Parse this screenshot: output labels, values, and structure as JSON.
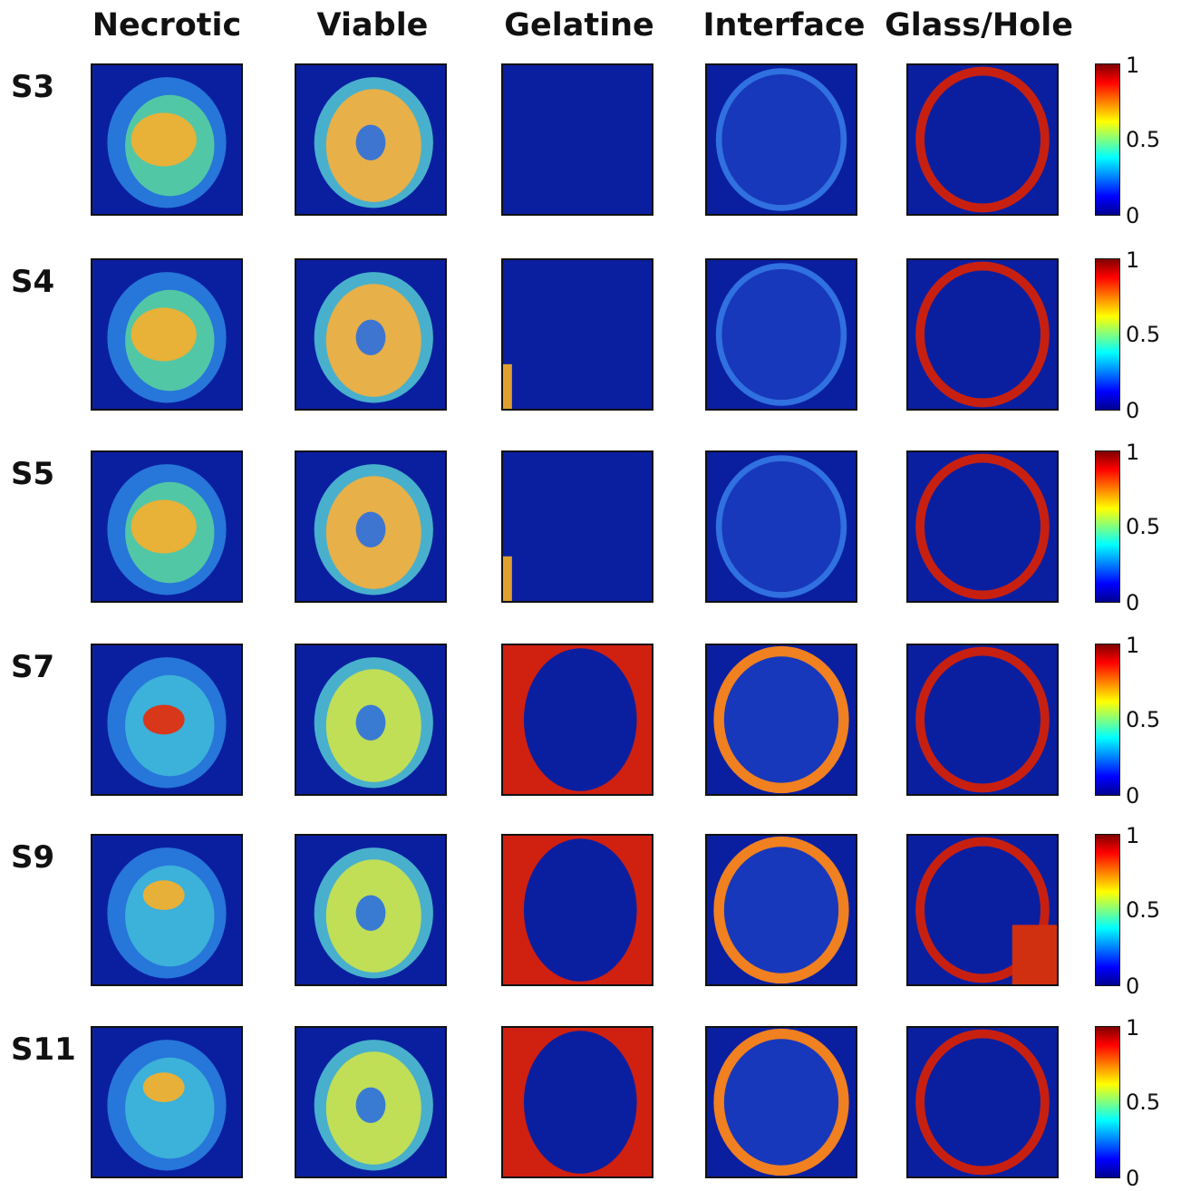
{
  "columns": [
    "Necrotic",
    "Viable",
    "Gelatine",
    "Interface",
    "Glass/Hole"
  ],
  "rows": [
    "S3",
    "S4",
    "S5",
    "S7",
    "S9",
    "S11"
  ],
  "colorbar": {
    "ticks": [
      "1",
      "0.5",
      "0"
    ],
    "colormap": "jet",
    "colors": [
      "#00008f",
      "#0000ff",
      "#00ffff",
      "#ffff00",
      "#ff0000",
      "#800000"
    ]
  }
}
